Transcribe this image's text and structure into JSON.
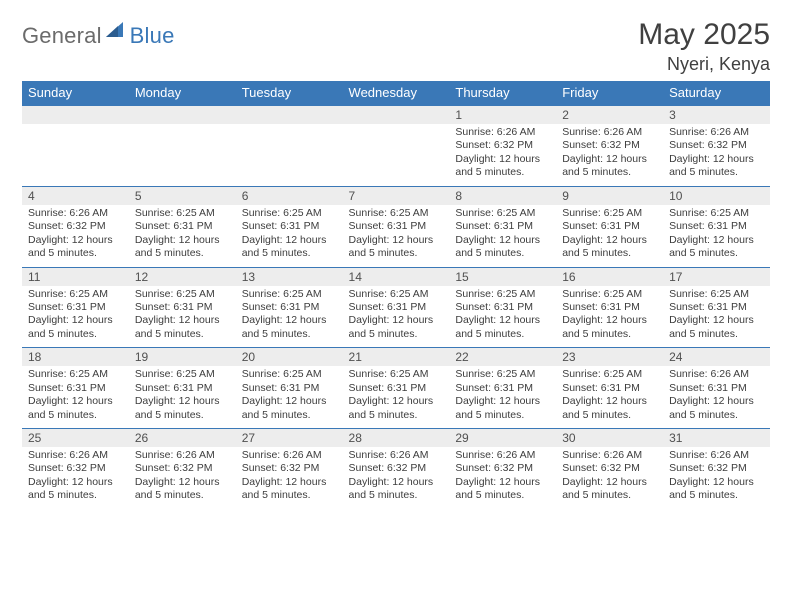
{
  "logo": {
    "text1": "General",
    "text2": "Blue",
    "text1_color": "#6b6b6b",
    "text2_color": "#3a78b7"
  },
  "header": {
    "month_title": "May 2025",
    "location": "Nyeri, Kenya"
  },
  "colors": {
    "header_bg": "#3a78b7",
    "header_text": "#ffffff",
    "daynum_bg": "#ededed",
    "daynum_text": "#505050",
    "cell_text": "#3d3d3d",
    "rule": "#3a78b7"
  },
  "days_of_week": [
    "Sunday",
    "Monday",
    "Tuesday",
    "Wednesday",
    "Thursday",
    "Friday",
    "Saturday"
  ],
  "weeks": [
    {
      "nums": [
        "",
        "",
        "",
        "",
        "1",
        "2",
        "3"
      ],
      "info": [
        "",
        "",
        "",
        "",
        "Sunrise: 6:26 AM\nSunset: 6:32 PM\nDaylight: 12 hours and 5 minutes.",
        "Sunrise: 6:26 AM\nSunset: 6:32 PM\nDaylight: 12 hours and 5 minutes.",
        "Sunrise: 6:26 AM\nSunset: 6:32 PM\nDaylight: 12 hours and 5 minutes."
      ]
    },
    {
      "nums": [
        "4",
        "5",
        "6",
        "7",
        "8",
        "9",
        "10"
      ],
      "info": [
        "Sunrise: 6:26 AM\nSunset: 6:32 PM\nDaylight: 12 hours and 5 minutes.",
        "Sunrise: 6:25 AM\nSunset: 6:31 PM\nDaylight: 12 hours and 5 minutes.",
        "Sunrise: 6:25 AM\nSunset: 6:31 PM\nDaylight: 12 hours and 5 minutes.",
        "Sunrise: 6:25 AM\nSunset: 6:31 PM\nDaylight: 12 hours and 5 minutes.",
        "Sunrise: 6:25 AM\nSunset: 6:31 PM\nDaylight: 12 hours and 5 minutes.",
        "Sunrise: 6:25 AM\nSunset: 6:31 PM\nDaylight: 12 hours and 5 minutes.",
        "Sunrise: 6:25 AM\nSunset: 6:31 PM\nDaylight: 12 hours and 5 minutes."
      ]
    },
    {
      "nums": [
        "11",
        "12",
        "13",
        "14",
        "15",
        "16",
        "17"
      ],
      "info": [
        "Sunrise: 6:25 AM\nSunset: 6:31 PM\nDaylight: 12 hours and 5 minutes.",
        "Sunrise: 6:25 AM\nSunset: 6:31 PM\nDaylight: 12 hours and 5 minutes.",
        "Sunrise: 6:25 AM\nSunset: 6:31 PM\nDaylight: 12 hours and 5 minutes.",
        "Sunrise: 6:25 AM\nSunset: 6:31 PM\nDaylight: 12 hours and 5 minutes.",
        "Sunrise: 6:25 AM\nSunset: 6:31 PM\nDaylight: 12 hours and 5 minutes.",
        "Sunrise: 6:25 AM\nSunset: 6:31 PM\nDaylight: 12 hours and 5 minutes.",
        "Sunrise: 6:25 AM\nSunset: 6:31 PM\nDaylight: 12 hours and 5 minutes."
      ]
    },
    {
      "nums": [
        "18",
        "19",
        "20",
        "21",
        "22",
        "23",
        "24"
      ],
      "info": [
        "Sunrise: 6:25 AM\nSunset: 6:31 PM\nDaylight: 12 hours and 5 minutes.",
        "Sunrise: 6:25 AM\nSunset: 6:31 PM\nDaylight: 12 hours and 5 minutes.",
        "Sunrise: 6:25 AM\nSunset: 6:31 PM\nDaylight: 12 hours and 5 minutes.",
        "Sunrise: 6:25 AM\nSunset: 6:31 PM\nDaylight: 12 hours and 5 minutes.",
        "Sunrise: 6:25 AM\nSunset: 6:31 PM\nDaylight: 12 hours and 5 minutes.",
        "Sunrise: 6:25 AM\nSunset: 6:31 PM\nDaylight: 12 hours and 5 minutes.",
        "Sunrise: 6:26 AM\nSunset: 6:31 PM\nDaylight: 12 hours and 5 minutes."
      ]
    },
    {
      "nums": [
        "25",
        "26",
        "27",
        "28",
        "29",
        "30",
        "31"
      ],
      "info": [
        "Sunrise: 6:26 AM\nSunset: 6:32 PM\nDaylight: 12 hours and 5 minutes.",
        "Sunrise: 6:26 AM\nSunset: 6:32 PM\nDaylight: 12 hours and 5 minutes.",
        "Sunrise: 6:26 AM\nSunset: 6:32 PM\nDaylight: 12 hours and 5 minutes.",
        "Sunrise: 6:26 AM\nSunset: 6:32 PM\nDaylight: 12 hours and 5 minutes.",
        "Sunrise: 6:26 AM\nSunset: 6:32 PM\nDaylight: 12 hours and 5 minutes.",
        "Sunrise: 6:26 AM\nSunset: 6:32 PM\nDaylight: 12 hours and 5 minutes.",
        "Sunrise: 6:26 AM\nSunset: 6:32 PM\nDaylight: 12 hours and 5 minutes."
      ]
    }
  ]
}
